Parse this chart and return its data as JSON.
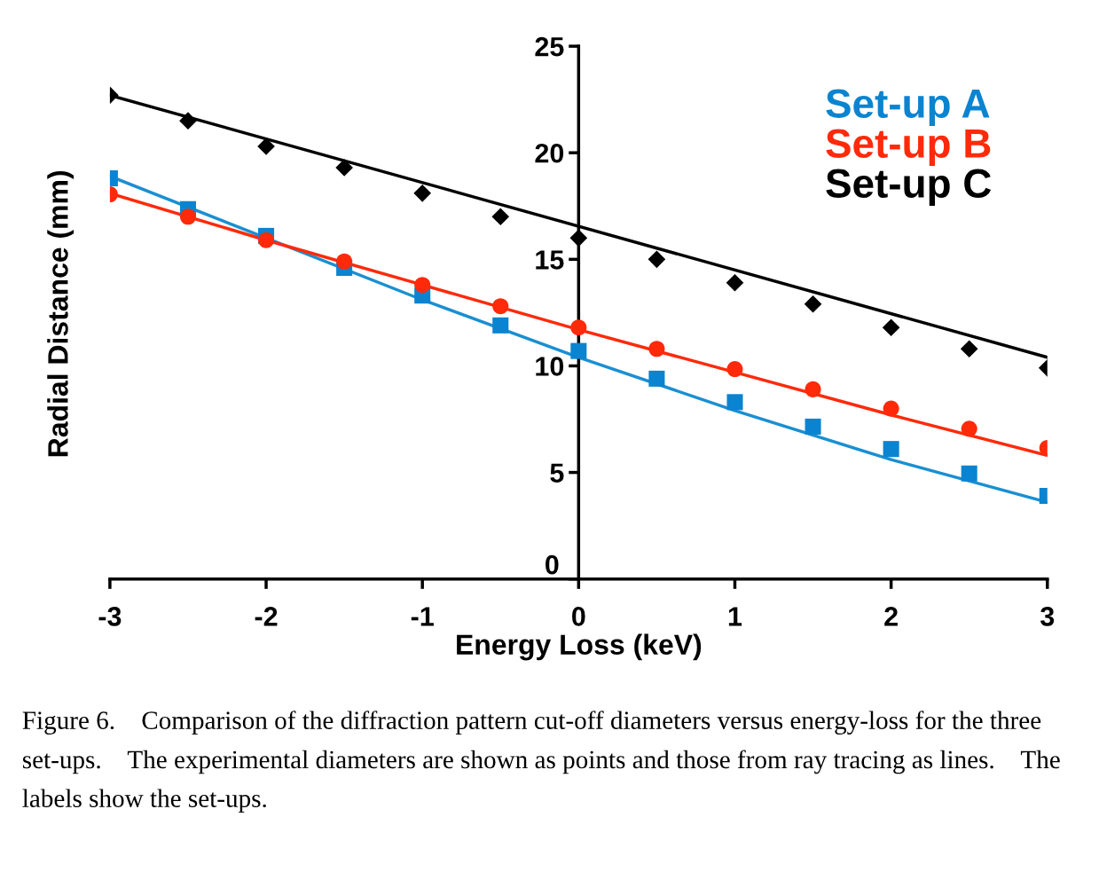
{
  "chart_data": {
    "type": "scatter",
    "xlabel": "Energy Loss (keV)",
    "ylabel": "Radial Distance (mm)",
    "x": [
      -3,
      -2.5,
      -2,
      -1.5,
      -1,
      -0.5,
      0,
      0.5,
      1,
      1.5,
      2,
      2.5,
      3
    ],
    "xlim": [
      -3,
      3
    ],
    "xticks": [
      -3,
      -2,
      -1,
      0,
      1,
      2,
      3
    ],
    "ylim": [
      0,
      25
    ],
    "yticks": [
      0,
      5,
      10,
      15,
      20,
      25
    ],
    "grid": false,
    "legend": "top right",
    "series": [
      {
        "type": "line",
        "color": "#1a8fd2",
        "x": [
          -3,
          -1,
          0,
          1,
          2,
          3
        ],
        "values": [
          18.9,
          13.1,
          10.4,
          7.9,
          5.6,
          3.6
        ],
        "marker": "none"
      },
      {
        "type": "line",
        "color": "#ff2a0a",
        "x": [
          -3,
          -2,
          -1,
          0,
          1,
          2,
          3
        ],
        "values": [
          18.1,
          15.9,
          13.8,
          11.7,
          9.7,
          7.7,
          5.8
        ],
        "marker": "none"
      },
      {
        "type": "line",
        "color": "#000000",
        "x": [
          -3,
          3
        ],
        "values": [
          22.7,
          10.4
        ],
        "marker": "none"
      },
      {
        "name": "Set-up A",
        "color": "#0a84d0",
        "marker": "square",
        "values": [
          18.8,
          17.35,
          16.1,
          14.6,
          13.3,
          11.9,
          10.7,
          9.4,
          8.3,
          7.15,
          6.1,
          4.95,
          3.9
        ]
      },
      {
        "name": "Set-up B",
        "color": "#ff2a0a",
        "marker": "circle",
        "values": [
          18.05,
          17.0,
          15.9,
          14.9,
          13.8,
          12.8,
          11.8,
          10.8,
          9.85,
          8.9,
          8.0,
          7.05,
          6.15
        ]
      },
      {
        "name": "Set-up C",
        "color": "#000000",
        "marker": "diamond",
        "values": [
          22.7,
          21.5,
          20.3,
          19.3,
          18.1,
          17.0,
          16.0,
          15.0,
          13.9,
          12.9,
          11.8,
          10.8,
          9.9
        ]
      }
    ],
    "annotations": [
      "Figure 6.    Comparison of the diffraction pattern cut-off diameters versus energy-loss for the three set-ups.    The experimental diameters are shown as points and those from ray tracing as lines.    The labels show the set-ups."
    ]
  }
}
